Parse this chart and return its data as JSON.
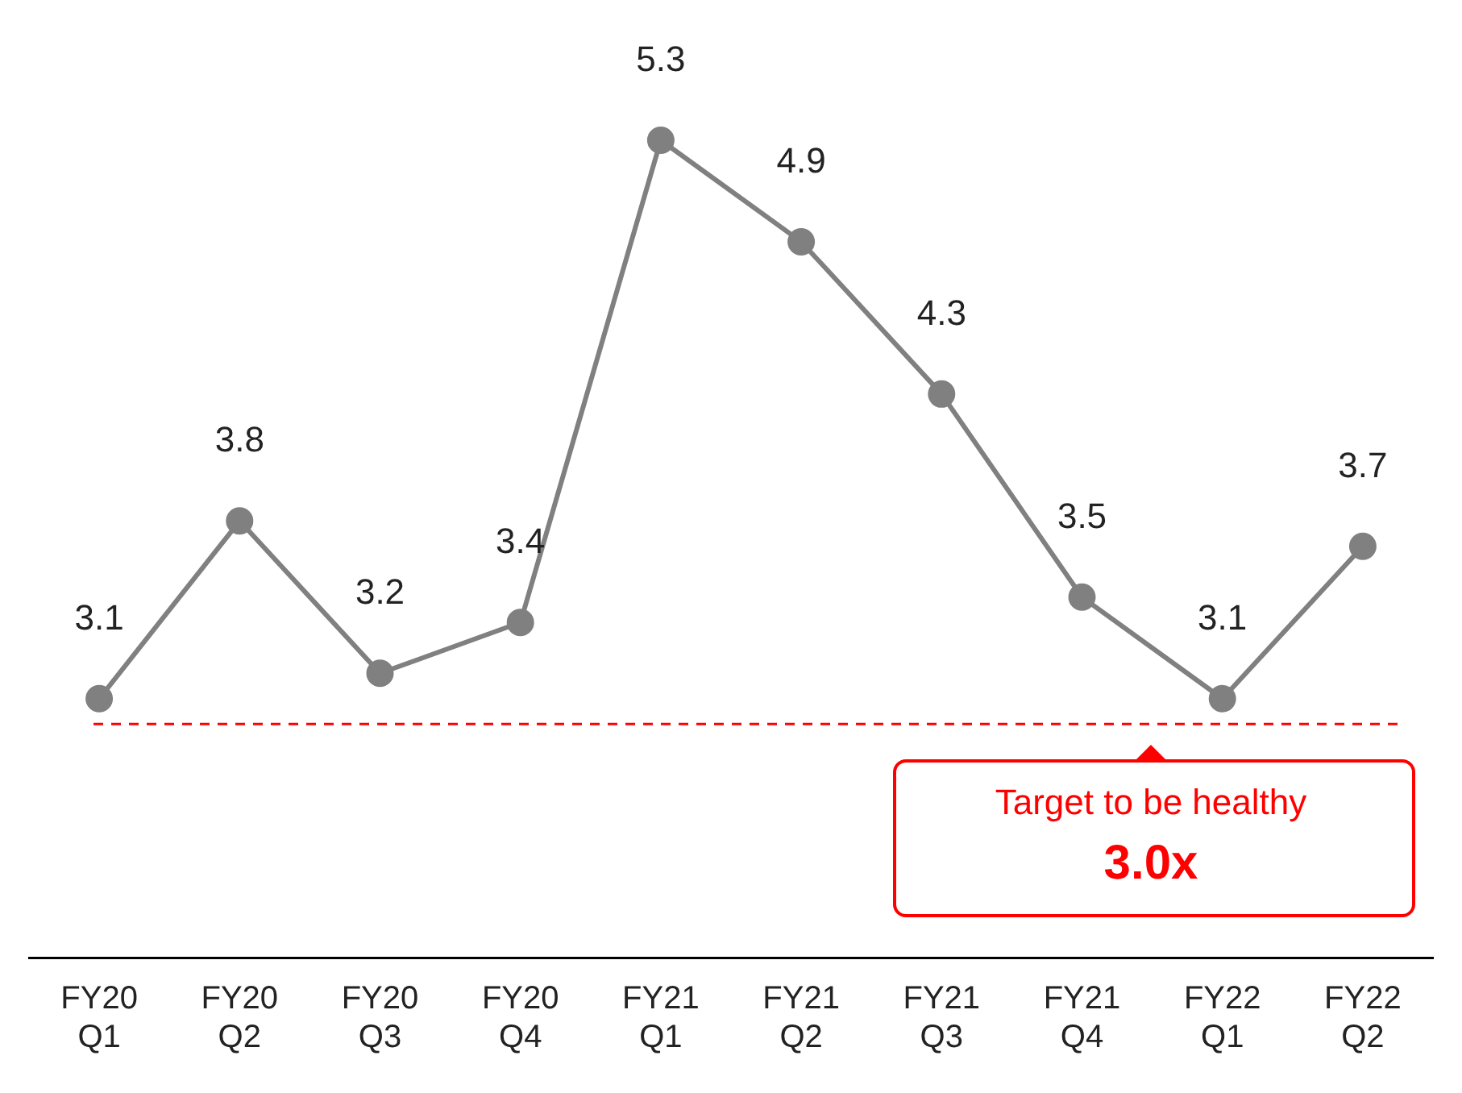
{
  "chart_data": {
    "type": "line",
    "categories": [
      "FY20 Q1",
      "FY20 Q2",
      "FY20 Q3",
      "FY20 Q4",
      "FY21 Q1",
      "FY21 Q2",
      "FY21 Q3",
      "FY21 Q4",
      "FY22 Q1",
      "FY22 Q2"
    ],
    "values": [
      3.1,
      3.8,
      3.2,
      3.4,
      5.3,
      4.9,
      4.3,
      3.5,
      3.1,
      3.7
    ],
    "color": "#808080",
    "marker": "circle",
    "line_style": "solid",
    "data_labels": true,
    "grid": false,
    "ref_lines": [
      {
        "axis": "y",
        "value": 3.0,
        "label": "Target to be healthy\n3.0x",
        "color": "#ff0000",
        "line_style": "dashed"
      }
    ]
  }
}
